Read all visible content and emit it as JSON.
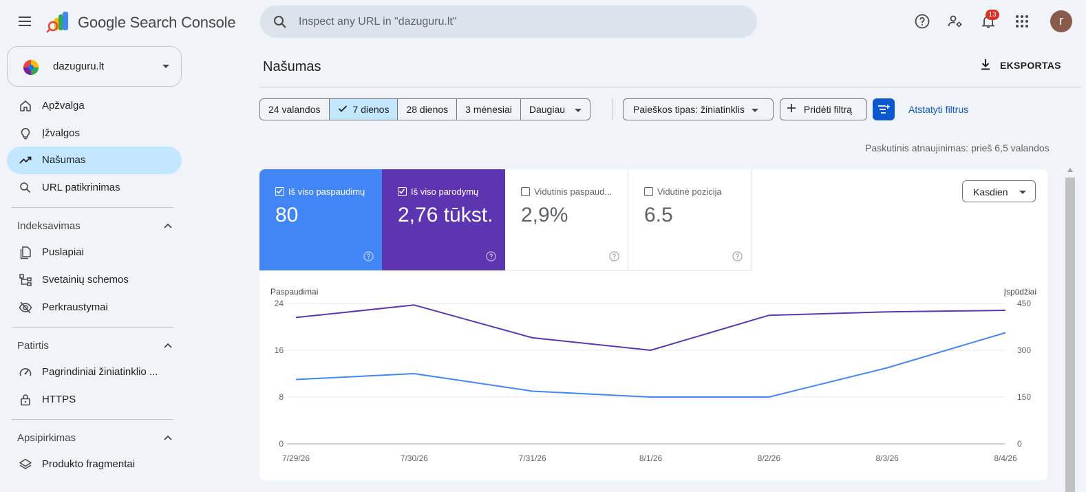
{
  "app": {
    "title": "Google Search Console",
    "search_placeholder": "Inspect any URL in \"dazuguru.lt\"",
    "notification_count": "13",
    "avatar_letter": "r"
  },
  "property": {
    "name": "dazuguru.lt"
  },
  "sidebar": {
    "items": [
      {
        "label": "Apžvalga",
        "icon": "home-icon"
      },
      {
        "label": "Įžvalgos",
        "icon": "lightbulb-icon"
      },
      {
        "label": "Našumas",
        "icon": "trending-up-icon",
        "active": true
      },
      {
        "label": "URL patikrinimas",
        "icon": "search-icon"
      }
    ],
    "sections": [
      {
        "title": "Indeksavimas",
        "items": [
          {
            "label": "Puslapiai",
            "icon": "pages-icon"
          },
          {
            "label": "Svetainių schemos",
            "icon": "sitemap-icon"
          },
          {
            "label": "Perkraustymai",
            "icon": "eye-off-icon"
          }
        ]
      },
      {
        "title": "Patirtis",
        "items": [
          {
            "label": "Pagrindiniai žiniatinklio ...",
            "icon": "speed-icon"
          },
          {
            "label": "HTTPS",
            "icon": "lock-icon"
          }
        ]
      },
      {
        "title": "Apsipirkimas",
        "items": [
          {
            "label": "Produkto fragmentai",
            "icon": "layers-icon"
          }
        ]
      }
    ]
  },
  "main": {
    "title": "Našumas",
    "export_label": "EKSPORTAS",
    "date_ranges": [
      "24 valandos",
      "7 dienos",
      "28 dienos",
      "3 mėnesiai",
      "Daugiau"
    ],
    "selected_range": "7 dienos",
    "search_type_label": "Paieškos tipas: žiniatinklis",
    "add_filter_label": "Pridėti filtrą",
    "reset_filters_label": "Atstatyti filtrus",
    "last_update": "Paskutinis atnaujinimas: prieš 6,5 valandos",
    "granularity": "Kasdien"
  },
  "metrics": [
    {
      "label": "Iš viso paspaudimų",
      "value": "80",
      "checked": true,
      "color": "#4285f4"
    },
    {
      "label": "Iš viso parodymų",
      "value": "2,76 tūkst.",
      "checked": true,
      "color": "#5e35b1"
    },
    {
      "label": "Vidutinis paspaud...",
      "value": "2,9%",
      "checked": false
    },
    {
      "label": "Vidutinė pozicija",
      "value": "6.5",
      "checked": false
    }
  ],
  "chart_data": {
    "type": "line",
    "left_axis_label": "Paspaudimai",
    "right_axis_label": "Įspūdžiai",
    "left_ticks": [
      "24",
      "16",
      "8",
      "0"
    ],
    "right_ticks": [
      "450",
      "300",
      "150",
      "0"
    ],
    "left_ylim": [
      0,
      24
    ],
    "right_ylim": [
      0,
      450
    ],
    "x": [
      "7/29/26",
      "7/30/26",
      "7/31/26",
      "8/1/26",
      "8/2/26",
      "8/3/26",
      "8/4/26"
    ],
    "series": [
      {
        "name": "Iš viso paspaudimų",
        "axis": "left",
        "color": "#4285f4",
        "values": [
          11,
          12,
          9,
          8,
          8,
          13,
          19
        ]
      },
      {
        "name": "Iš viso parodymų",
        "axis": "right",
        "color": "#5e35b1",
        "values": [
          405,
          445,
          340,
          300,
          412,
          423,
          428
        ]
      }
    ]
  }
}
